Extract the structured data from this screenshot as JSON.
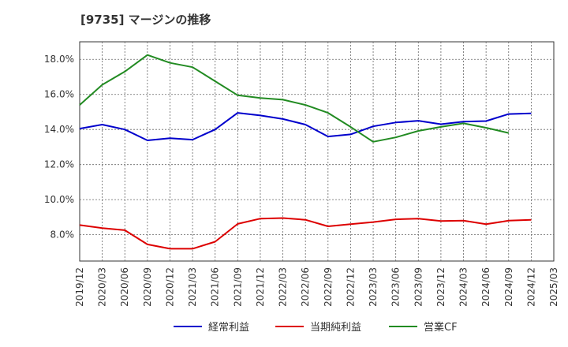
{
  "chart_data": {
    "type": "line",
    "title": "[9735]  マージンの推移",
    "xlabel": "",
    "ylabel": "",
    "x": [
      "2019/12",
      "2020/03",
      "2020/06",
      "2020/09",
      "2020/12",
      "2021/03",
      "2021/06",
      "2021/09",
      "2021/12",
      "2022/03",
      "2022/06",
      "2022/09",
      "2022/12",
      "2023/03",
      "2023/06",
      "2023/09",
      "2023/12",
      "2024/03",
      "2024/06",
      "2024/09",
      "2024/12"
    ],
    "x_ticks": [
      "2019/12",
      "2020/03",
      "2020/06",
      "2020/09",
      "2020/12",
      "2021/03",
      "2021/06",
      "2021/09",
      "2021/12",
      "2022/03",
      "2022/06",
      "2022/09",
      "2022/12",
      "2023/03",
      "2023/06",
      "2023/09",
      "2023/12",
      "2024/03",
      "2024/06",
      "2024/09",
      "2024/12",
      "2025/03"
    ],
    "y_ticks": [
      "8.0%",
      "10.0%",
      "12.0%",
      "14.0%",
      "16.0%",
      "18.0%"
    ],
    "ylim": [
      6.5,
      19.0
    ],
    "grid": true,
    "legend_position": "bottom",
    "series": [
      {
        "name": "経常利益",
        "color": "#0000cc",
        "values": [
          14.05,
          14.28,
          14.0,
          13.38,
          13.5,
          13.42,
          14.0,
          14.95,
          14.8,
          14.6,
          14.28,
          13.6,
          13.72,
          14.18,
          14.4,
          14.5,
          14.3,
          14.45,
          14.48,
          14.88,
          14.92
        ]
      },
      {
        "name": "当期純利益",
        "color": "#dd0000",
        "values": [
          8.55,
          8.38,
          8.26,
          7.45,
          7.2,
          7.2,
          7.6,
          8.62,
          8.92,
          8.95,
          8.85,
          8.48,
          8.6,
          8.72,
          8.88,
          8.92,
          8.78,
          8.8,
          8.6,
          8.8,
          8.85
        ]
      },
      {
        "name": "営業CF",
        "color": "#228b22",
        "values": [
          15.4,
          16.55,
          17.3,
          18.25,
          17.8,
          17.55,
          16.75,
          15.95,
          15.8,
          15.7,
          15.4,
          14.95,
          14.15,
          13.3,
          13.55,
          13.92,
          14.15,
          14.35,
          14.1,
          13.8,
          null
        ]
      }
    ]
  }
}
